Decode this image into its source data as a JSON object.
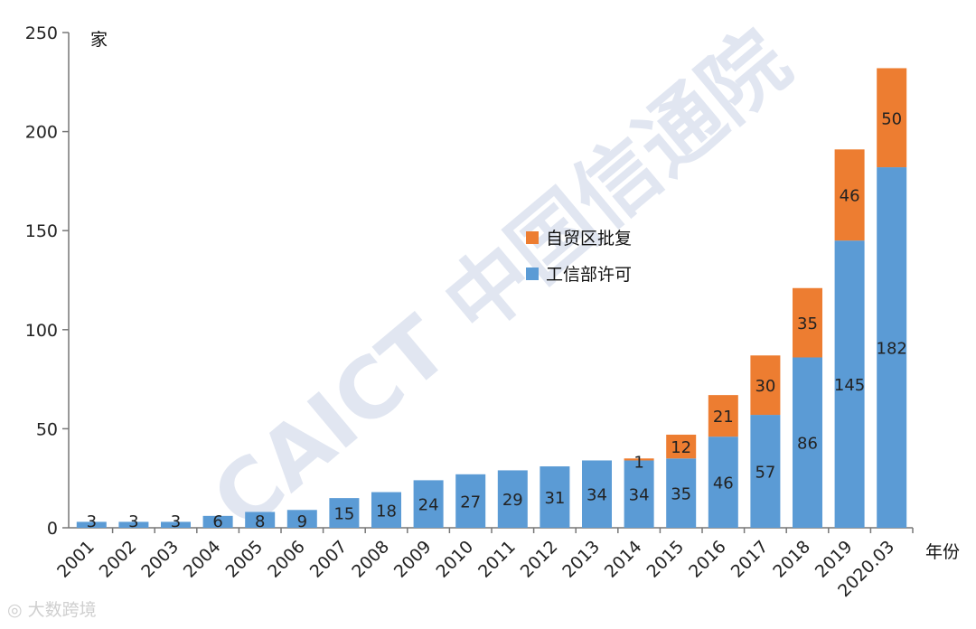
{
  "chart_data": {
    "type": "bar",
    "stacked": true,
    "categories": [
      "2001",
      "2002",
      "2003",
      "2004",
      "2005",
      "2006",
      "2007",
      "2008",
      "2009",
      "2010",
      "2011",
      "2012",
      "2013",
      "2014",
      "2015",
      "2016",
      "2017",
      "2018",
      "2019",
      "2020.03"
    ],
    "series": [
      {
        "name": "工信部许可",
        "color": "#5b9bd5",
        "values": [
          3,
          3,
          3,
          6,
          8,
          9,
          15,
          18,
          24,
          27,
          29,
          31,
          34,
          34,
          35,
          46,
          57,
          86,
          145,
          182
        ]
      },
      {
        "name": "自贸区批复",
        "color": "#ed7d31",
        "values": [
          0,
          0,
          0,
          0,
          0,
          0,
          0,
          0,
          0,
          0,
          0,
          0,
          0,
          1,
          12,
          21,
          30,
          35,
          46,
          50
        ]
      }
    ],
    "ylabel": "家",
    "xlabel": "年份",
    "ylim": [
      0,
      250
    ],
    "yticks": [
      0,
      50,
      100,
      150,
      200,
      250
    ],
    "legend_position": "center",
    "grid": false
  },
  "watermark": "CAICT 中国信通院",
  "source_mark": "大数跨境"
}
